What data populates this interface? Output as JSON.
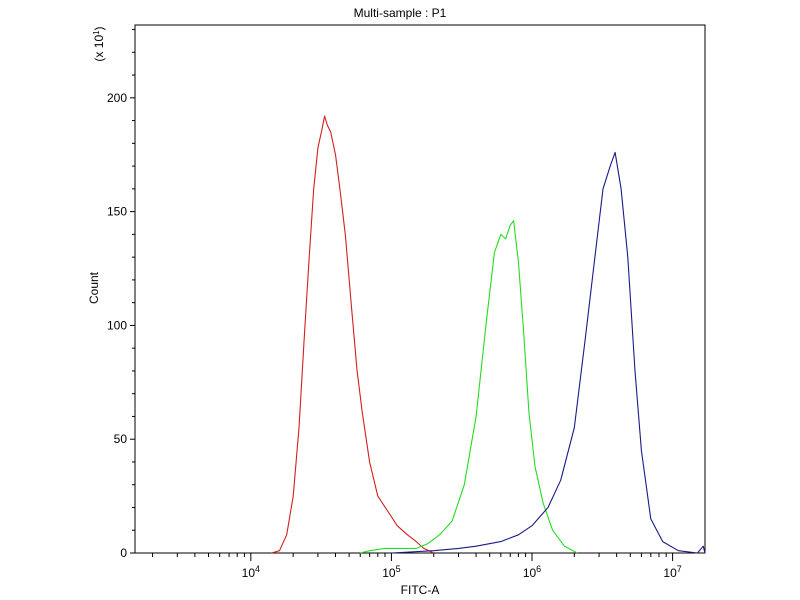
{
  "chart_data": {
    "type": "line",
    "title": "Multi-sample : P1",
    "xlabel": "FITC-A",
    "ylabel": "Count",
    "y_multiplier": "(x 10",
    "y_multiplier_exp": "1",
    "y_multiplier_close": ")",
    "xscale": "log",
    "xlim": [
      1500,
      17000000
    ],
    "ylim": [
      0,
      232
    ],
    "grid": false,
    "legend": "none",
    "x_ticks": [
      {
        "value": 10000,
        "base": "10",
        "exp": "4"
      },
      {
        "value": 100000,
        "base": "10",
        "exp": "5"
      },
      {
        "value": 1000000,
        "base": "10",
        "exp": "6"
      },
      {
        "value": 10000000,
        "base": "10",
        "exp": "7"
      }
    ],
    "y_ticks": [
      {
        "value": 0,
        "label": "0"
      },
      {
        "value": 50,
        "label": "50"
      },
      {
        "value": 100,
        "label": "100"
      },
      {
        "value": 150,
        "label": "150"
      },
      {
        "value": 200,
        "label": "200"
      }
    ],
    "series": [
      {
        "color": "#d02020",
        "points": [
          [
            14000,
            0
          ],
          [
            16000,
            1
          ],
          [
            18000,
            8
          ],
          [
            20000,
            25
          ],
          [
            22000,
            55
          ],
          [
            24000,
            95
          ],
          [
            26000,
            130
          ],
          [
            28000,
            160
          ],
          [
            30000,
            178
          ],
          [
            32000,
            186
          ],
          [
            33500,
            192
          ],
          [
            35000,
            188
          ],
          [
            37000,
            185
          ],
          [
            40000,
            175
          ],
          [
            43000,
            160
          ],
          [
            47000,
            140
          ],
          [
            52000,
            108
          ],
          [
            57000,
            80
          ],
          [
            62000,
            62
          ],
          [
            70000,
            40
          ],
          [
            80000,
            25
          ],
          [
            95000,
            18
          ],
          [
            110000,
            12
          ],
          [
            130000,
            8
          ],
          [
            150000,
            5
          ],
          [
            170000,
            2
          ],
          [
            200000,
            0
          ]
        ]
      },
      {
        "color": "#22dd22",
        "points": [
          [
            60000,
            0
          ],
          [
            70000,
            1
          ],
          [
            90000,
            2
          ],
          [
            120000,
            2
          ],
          [
            150000,
            2
          ],
          [
            180000,
            4
          ],
          [
            220000,
            8
          ],
          [
            270000,
            14
          ],
          [
            330000,
            30
          ],
          [
            400000,
            60
          ],
          [
            470000,
            100
          ],
          [
            540000,
            132
          ],
          [
            600000,
            140
          ],
          [
            650000,
            138
          ],
          [
            700000,
            144
          ],
          [
            740000,
            146
          ],
          [
            800000,
            128
          ],
          [
            870000,
            98
          ],
          [
            950000,
            62
          ],
          [
            1050000,
            38
          ],
          [
            1200000,
            22
          ],
          [
            1400000,
            10
          ],
          [
            1700000,
            3
          ],
          [
            2100000,
            0
          ]
        ]
      },
      {
        "color": "#1a1a88",
        "points": [
          [
            100000,
            0
          ],
          [
            200000,
            1
          ],
          [
            300000,
            2
          ],
          [
            400000,
            3
          ],
          [
            600000,
            5
          ],
          [
            800000,
            8
          ],
          [
            1000000,
            12
          ],
          [
            1300000,
            20
          ],
          [
            1600000,
            32
          ],
          [
            2000000,
            55
          ],
          [
            2400000,
            95
          ],
          [
            2800000,
            130
          ],
          [
            3200000,
            160
          ],
          [
            3600000,
            170
          ],
          [
            3900000,
            176
          ],
          [
            4300000,
            160
          ],
          [
            4800000,
            130
          ],
          [
            5400000,
            80
          ],
          [
            6000000,
            45
          ],
          [
            7000000,
            15
          ],
          [
            8500000,
            5
          ],
          [
            11000000,
            1
          ],
          [
            15000000,
            0
          ],
          [
            16500000,
            3
          ],
          [
            17000000,
            0
          ]
        ]
      }
    ]
  }
}
